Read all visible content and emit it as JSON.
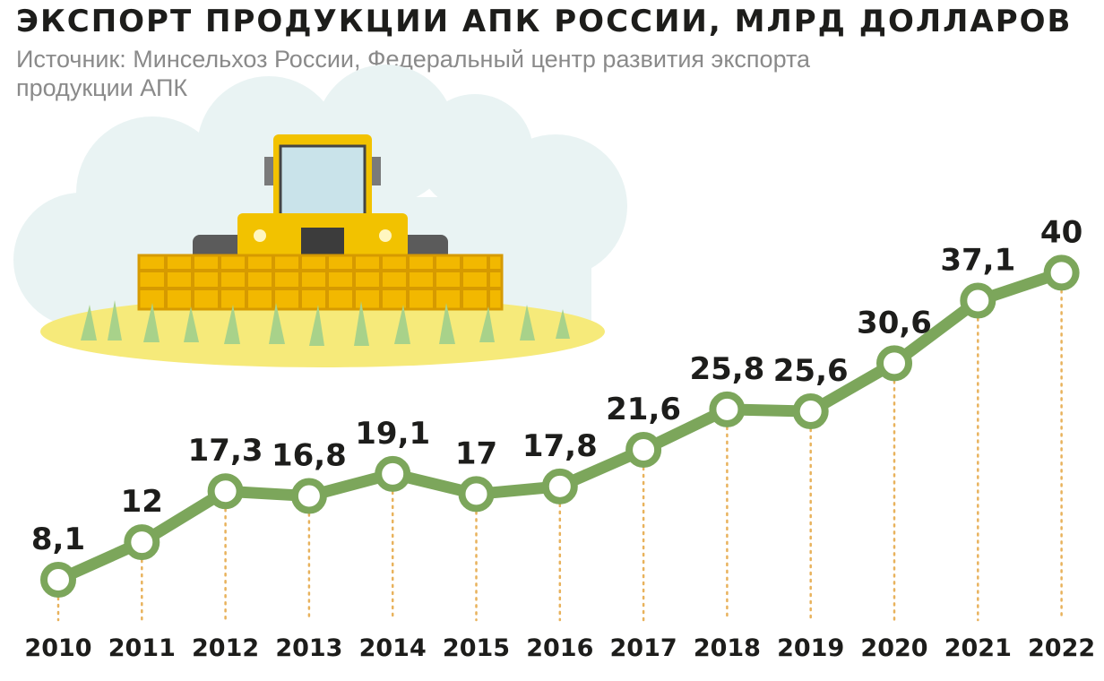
{
  "header": {
    "title": "ЭКСПОРТ ПРОДУКЦИИ АПК РОССИИ, МЛРД ДОЛЛАРОВ",
    "source": "Источник: Минсельхоз России, Федеральный центр развития экспорта продукции АПК"
  },
  "colors": {
    "line": "#7ca65b",
    "marker_fill": "#ffffff",
    "dotted_guides": "#e8b25c",
    "text": "#1d1d1b",
    "subtitle": "#8a8a8a",
    "cloud": "#e9f3f3",
    "field": "#f6ea7a",
    "harvester": "#f2c200"
  },
  "illustration": "harvester-in-field",
  "chart_data": {
    "type": "line",
    "x": [
      2010,
      2011,
      2012,
      2013,
      2014,
      2015,
      2016,
      2017,
      2018,
      2019,
      2020,
      2021,
      2022
    ],
    "values": [
      8.1,
      12,
      17.3,
      16.8,
      19.1,
      17,
      17.8,
      21.6,
      25.8,
      25.6,
      30.6,
      37.1,
      40
    ],
    "value_labels": [
      "8,1",
      "12",
      "17,3",
      "16,8",
      "19,1",
      "17",
      "17,8",
      "21,6",
      "25,8",
      "25,6",
      "30,6",
      "37,1",
      "40"
    ],
    "x_labels": [
      "2010",
      "2011",
      "2012",
      "2013",
      "2014",
      "2015",
      "2016",
      "2017",
      "2018",
      "2019",
      "2020",
      "2021",
      "2022"
    ],
    "title": "ЭКСПОРТ ПРОДУКЦИИ АПК РОССИИ, МЛРД ДОЛЛАРОВ",
    "xlabel": "",
    "ylabel": "",
    "ylim": [
      0,
      45
    ],
    "grid": false,
    "legend": "none"
  }
}
